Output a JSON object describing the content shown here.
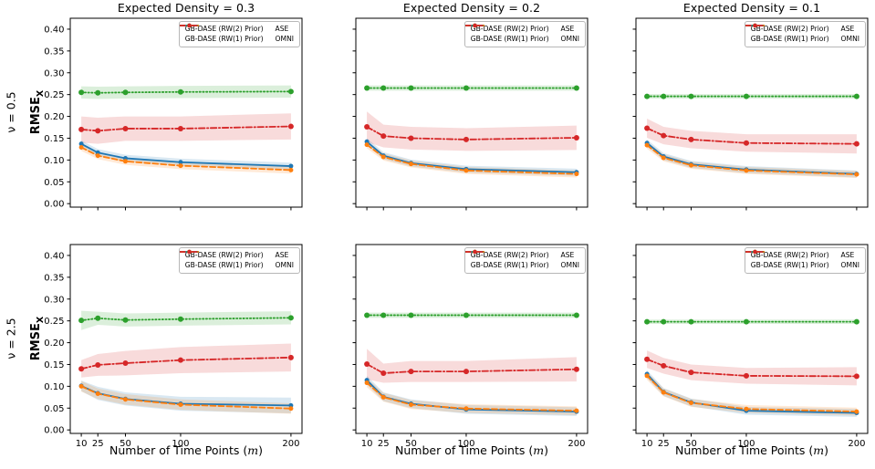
{
  "figure": {
    "col_titles": [
      "Expected Density = 0.3",
      "Expected Density = 0.2",
      "Expected Density = 0.1"
    ],
    "row_labels": [
      "ν = 0.5",
      "ν = 2.5"
    ],
    "ylabel_main": "RMSE",
    "ylabel_sub": "X",
    "xlabel_prefix": "Number of Time Points (",
    "xlabel_var": "m",
    "xlabel_suffix": ")",
    "xlim": [
      0,
      210
    ],
    "ylim": [
      -0.008,
      0.425
    ],
    "grid": false,
    "legend_position": "upper right, 2 columns, framed, shown in every subplot",
    "yticks": [
      {
        "v": 0.0,
        "label": "0.00"
      },
      {
        "v": 0.05,
        "label": "0.05"
      },
      {
        "v": 0.1,
        "label": "0.10"
      },
      {
        "v": 0.15,
        "label": "0.15"
      },
      {
        "v": 0.2,
        "label": "0.20"
      },
      {
        "v": 0.25,
        "label": "0.25"
      },
      {
        "v": 0.3,
        "label": "0.30"
      },
      {
        "v": 0.35,
        "label": "0.35"
      },
      {
        "v": 0.4,
        "label": "0.40"
      }
    ],
    "xticks": [
      {
        "v": 10,
        "label": "10"
      },
      {
        "v": 25,
        "label": "25"
      },
      {
        "v": 50,
        "label": "50"
      },
      {
        "v": 100,
        "label": "100"
      },
      {
        "v": 200,
        "label": "200"
      }
    ],
    "styles": {
      "rw2": {
        "color": "#1f77b4",
        "dash": "solid",
        "r": 2.5
      },
      "rw1": {
        "color": "#ff7f0e",
        "dash": "dashed",
        "r": 2.5
      },
      "ase": {
        "color": "#2ca02c",
        "dash": "dotted",
        "r": 3.0
      },
      "omni": {
        "color": "#d62728",
        "dash": "dashdot",
        "r": 3.0
      }
    },
    "dashes": {
      "solid": "",
      "dashed": "6,3",
      "dotted": "1.3,2.4",
      "dashdot": "6.5,2.5,1.4,2.5"
    },
    "legend": [
      {
        "key": "rw2",
        "label": "GB-DASE (RW(2) Prior)"
      },
      {
        "key": "rw1",
        "label": "GB-DASE (RW(1) Prior)"
      },
      {
        "key": "ase",
        "label": "ASE"
      },
      {
        "key": "omni",
        "label": "OMNI"
      }
    ]
  },
  "chart_data": [
    {
      "type": "line",
      "row_label": "ν = 0.5",
      "title": "Expected Density = 0.3",
      "x": [
        10,
        25,
        50,
        100,
        200
      ],
      "series": [
        {
          "key": "ase",
          "name": "ASE",
          "values": [
            0.255,
            0.254,
            0.255,
            0.256,
            0.257
          ],
          "band": 0.014
        },
        {
          "key": "omni",
          "name": "OMNI",
          "values": [
            0.17,
            0.167,
            0.172,
            0.172,
            0.177
          ],
          "band": [
            0.03,
            0.03,
            0.028,
            0.028,
            0.03
          ]
        },
        {
          "key": "rw2",
          "name": "GB-DASE (RW(2) Prior)",
          "values": [
            0.137,
            0.117,
            0.104,
            0.095,
            0.086
          ],
          "band": 0.008
        },
        {
          "key": "rw1",
          "name": "GB-DASE (RW(1) Prior)",
          "values": [
            0.129,
            0.11,
            0.097,
            0.087,
            0.077
          ],
          "band": 0.008
        }
      ]
    },
    {
      "type": "line",
      "row_label": "ν = 0.5",
      "title": "Expected Density = 0.2",
      "x": [
        10,
        25,
        50,
        100,
        200
      ],
      "series": [
        {
          "key": "ase",
          "name": "ASE",
          "values": [
            0.265,
            0.265,
            0.265,
            0.265,
            0.265
          ],
          "band": 0.006
        },
        {
          "key": "omni",
          "name": "OMNI",
          "values": [
            0.176,
            0.155,
            0.15,
            0.147,
            0.151
          ],
          "band": [
            0.035,
            0.026,
            0.026,
            0.026,
            0.028
          ]
        },
        {
          "key": "rw2",
          "name": "GB-DASE (RW(2) Prior)",
          "values": [
            0.142,
            0.11,
            0.093,
            0.079,
            0.072
          ],
          "band": 0.008
        },
        {
          "key": "rw1",
          "name": "GB-DASE (RW(1) Prior)",
          "values": [
            0.135,
            0.107,
            0.091,
            0.076,
            0.068
          ],
          "band": 0.008
        }
      ]
    },
    {
      "type": "line",
      "row_label": "ν = 0.5",
      "title": "Expected Density = 0.1",
      "x": [
        10,
        25,
        50,
        100,
        200
      ],
      "series": [
        {
          "key": "ase",
          "name": "ASE",
          "values": [
            0.246,
            0.246,
            0.246,
            0.246,
            0.246
          ],
          "band": 0.005
        },
        {
          "key": "omni",
          "name": "OMNI",
          "values": [
            0.173,
            0.156,
            0.147,
            0.139,
            0.137
          ],
          "band": [
            0.022,
            0.02,
            0.02,
            0.02,
            0.022
          ]
        },
        {
          "key": "rw2",
          "name": "GB-DASE (RW(2) Prior)",
          "values": [
            0.139,
            0.108,
            0.09,
            0.078,
            0.068
          ],
          "band": 0.008
        },
        {
          "key": "rw1",
          "name": "GB-DASE (RW(1) Prior)",
          "values": [
            0.134,
            0.105,
            0.088,
            0.076,
            0.067
          ],
          "band": 0.008
        }
      ]
    },
    {
      "type": "line",
      "row_label": "ν = 2.5",
      "title": "Expected Density = 0.3",
      "x": [
        10,
        25,
        50,
        100,
        200
      ],
      "series": [
        {
          "key": "ase",
          "name": "ASE",
          "values": [
            0.251,
            0.256,
            0.252,
            0.254,
            0.257
          ],
          "band": [
            0.022,
            0.015,
            0.015,
            0.015,
            0.015
          ]
        },
        {
          "key": "omni",
          "name": "OMNI",
          "values": [
            0.14,
            0.149,
            0.153,
            0.16,
            0.166
          ],
          "band": [
            0.02,
            0.025,
            0.028,
            0.03,
            0.032
          ]
        },
        {
          "key": "rw2",
          "name": "GB-DASE (RW(2) Prior)",
          "values": [
            0.101,
            0.084,
            0.071,
            0.06,
            0.056
          ],
          "band": [
            0.012,
            0.015,
            0.015,
            0.016,
            0.018
          ]
        },
        {
          "key": "rw1",
          "name": "GB-DASE (RW(1) Prior)",
          "values": [
            0.1,
            0.083,
            0.07,
            0.058,
            0.049
          ],
          "band": 0.012
        }
      ]
    },
    {
      "type": "line",
      "row_label": "ν = 2.5",
      "title": "Expected Density = 0.2",
      "x": [
        10,
        25,
        50,
        100,
        200
      ],
      "series": [
        {
          "key": "ase",
          "name": "ASE",
          "values": [
            0.263,
            0.263,
            0.263,
            0.263,
            0.263
          ],
          "band": 0.006
        },
        {
          "key": "omni",
          "name": "OMNI",
          "values": [
            0.151,
            0.13,
            0.134,
            0.134,
            0.139
          ],
          "band": [
            0.035,
            0.022,
            0.024,
            0.024,
            0.028
          ]
        },
        {
          "key": "rw2",
          "name": "GB-DASE (RW(2) Prior)",
          "values": [
            0.114,
            0.076,
            0.06,
            0.047,
            0.042
          ],
          "band": 0.01
        },
        {
          "key": "rw1",
          "name": "GB-DASE (RW(1) Prior)",
          "values": [
            0.108,
            0.075,
            0.058,
            0.049,
            0.044
          ],
          "band": 0.01
        }
      ]
    },
    {
      "type": "line",
      "row_label": "ν = 2.5",
      "title": "Expected Density = 0.1",
      "x": [
        10,
        25,
        50,
        100,
        200
      ],
      "series": [
        {
          "key": "ase",
          "name": "ASE",
          "values": [
            0.248,
            0.248,
            0.248,
            0.248,
            0.248
          ],
          "band": 0.005
        },
        {
          "key": "omni",
          "name": "OMNI",
          "values": [
            0.162,
            0.147,
            0.132,
            0.124,
            0.123
          ],
          "band": [
            0.02,
            0.018,
            0.018,
            0.018,
            0.021
          ]
        },
        {
          "key": "rw2",
          "name": "GB-DASE (RW(2) Prior)",
          "values": [
            0.128,
            0.087,
            0.063,
            0.044,
            0.039
          ],
          "band": 0.009
        },
        {
          "key": "rw1",
          "name": "GB-DASE (RW(1) Prior)",
          "values": [
            0.124,
            0.086,
            0.062,
            0.048,
            0.042
          ],
          "band": 0.009
        }
      ]
    }
  ]
}
